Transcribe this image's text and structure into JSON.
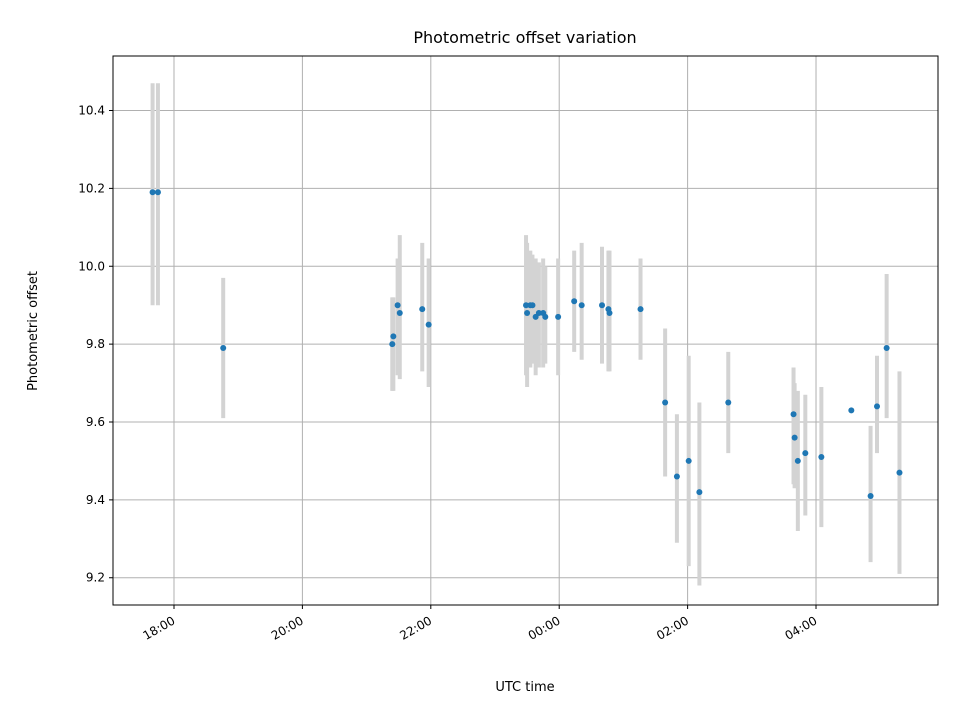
{
  "chart_data": {
    "type": "scatter",
    "title": "Photometric offset variation",
    "xlabel": "UTC time",
    "ylabel": "Photometric offset",
    "xlim": [
      "17:03",
      "05:54"
    ],
    "ylim": [
      9.13,
      10.54
    ],
    "grid": true,
    "x_ticks": [
      "18:00",
      "20:00",
      "22:00",
      "00:00",
      "02:00",
      "04:00"
    ],
    "y_ticks": [
      9.2,
      9.4,
      9.6,
      9.8,
      10.0,
      10.2,
      10.4
    ],
    "errorbar_color": "#d3d3d3",
    "marker_color": "#1f77b4",
    "points": [
      {
        "time": "17:40",
        "y": 10.19,
        "ylow": 9.9,
        "yhigh": 10.47
      },
      {
        "time": "17:45",
        "y": 10.19,
        "ylow": 9.9,
        "yhigh": 10.47
      },
      {
        "time": "18:46",
        "y": 9.79,
        "ylow": 9.61,
        "yhigh": 9.97
      },
      {
        "time": "21:24",
        "y": 9.8,
        "ylow": 9.68,
        "yhigh": 9.92
      },
      {
        "time": "21:25",
        "y": 9.82,
        "ylow": 9.68,
        "yhigh": 9.92
      },
      {
        "time": "21:29",
        "y": 9.9,
        "ylow": 9.72,
        "yhigh": 10.02
      },
      {
        "time": "21:31",
        "y": 9.88,
        "ylow": 9.71,
        "yhigh": 10.08
      },
      {
        "time": "21:52",
        "y": 9.89,
        "ylow": 9.73,
        "yhigh": 10.06
      },
      {
        "time": "21:58",
        "y": 9.85,
        "ylow": 9.69,
        "yhigh": 10.02
      },
      {
        "time": "23:29",
        "y": 9.9,
        "ylow": 9.72,
        "yhigh": 10.08
      },
      {
        "time": "23:30",
        "y": 9.88,
        "ylow": 9.69,
        "yhigh": 10.06
      },
      {
        "time": "23:33",
        "y": 9.9,
        "ylow": 9.74,
        "yhigh": 10.04
      },
      {
        "time": "23:35",
        "y": 9.9,
        "ylow": 9.75,
        "yhigh": 10.03
      },
      {
        "time": "23:38",
        "y": 9.87,
        "ylow": 9.72,
        "yhigh": 10.02
      },
      {
        "time": "23:41",
        "y": 9.88,
        "ylow": 9.74,
        "yhigh": 10.01
      },
      {
        "time": "23:45",
        "y": 9.88,
        "ylow": 9.74,
        "yhigh": 10.02
      },
      {
        "time": "23:47",
        "y": 9.87,
        "ylow": 9.75,
        "yhigh": 10.0
      },
      {
        "time": "23:59",
        "y": 9.87,
        "ylow": 9.72,
        "yhigh": 10.02
      },
      {
        "time": "00:14",
        "y": 9.91,
        "ylow": 9.78,
        "yhigh": 10.04
      },
      {
        "time": "00:21",
        "y": 9.9,
        "ylow": 9.76,
        "yhigh": 10.06
      },
      {
        "time": "00:40",
        "y": 9.9,
        "ylow": 9.75,
        "yhigh": 10.05
      },
      {
        "time": "00:46",
        "y": 9.89,
        "ylow": 9.73,
        "yhigh": 10.04
      },
      {
        "time": "00:47",
        "y": 9.88,
        "ylow": 9.73,
        "yhigh": 10.04
      },
      {
        "time": "01:16",
        "y": 9.89,
        "ylow": 9.76,
        "yhigh": 10.02
      },
      {
        "time": "01:39",
        "y": 9.65,
        "ylow": 9.46,
        "yhigh": 9.84
      },
      {
        "time": "01:50",
        "y": 9.46,
        "ylow": 9.29,
        "yhigh": 9.62
      },
      {
        "time": "02:01",
        "y": 9.5,
        "ylow": 9.23,
        "yhigh": 9.77
      },
      {
        "time": "02:11",
        "y": 9.42,
        "ylow": 9.18,
        "yhigh": 9.65
      },
      {
        "time": "02:38",
        "y": 9.65,
        "ylow": 9.52,
        "yhigh": 9.78
      },
      {
        "time": "03:39",
        "y": 9.62,
        "ylow": 9.44,
        "yhigh": 9.74
      },
      {
        "time": "03:40",
        "y": 9.56,
        "ylow": 9.43,
        "yhigh": 9.7
      },
      {
        "time": "03:43",
        "y": 9.5,
        "ylow": 9.32,
        "yhigh": 9.68
      },
      {
        "time": "03:50",
        "y": 9.52,
        "ylow": 9.36,
        "yhigh": 9.67
      },
      {
        "time": "04:05",
        "y": 9.51,
        "ylow": 9.33,
        "yhigh": 9.69
      },
      {
        "time": "04:33",
        "y": 9.63,
        "ylow": 9.63,
        "yhigh": 9.63
      },
      {
        "time": "04:51",
        "y": 9.41,
        "ylow": 9.24,
        "yhigh": 9.59
      },
      {
        "time": "04:57",
        "y": 9.64,
        "ylow": 9.52,
        "yhigh": 9.77
      },
      {
        "time": "05:06",
        "y": 9.79,
        "ylow": 9.61,
        "yhigh": 9.98
      },
      {
        "time": "05:18",
        "y": 9.47,
        "ylow": 9.21,
        "yhigh": 9.73
      }
    ]
  }
}
